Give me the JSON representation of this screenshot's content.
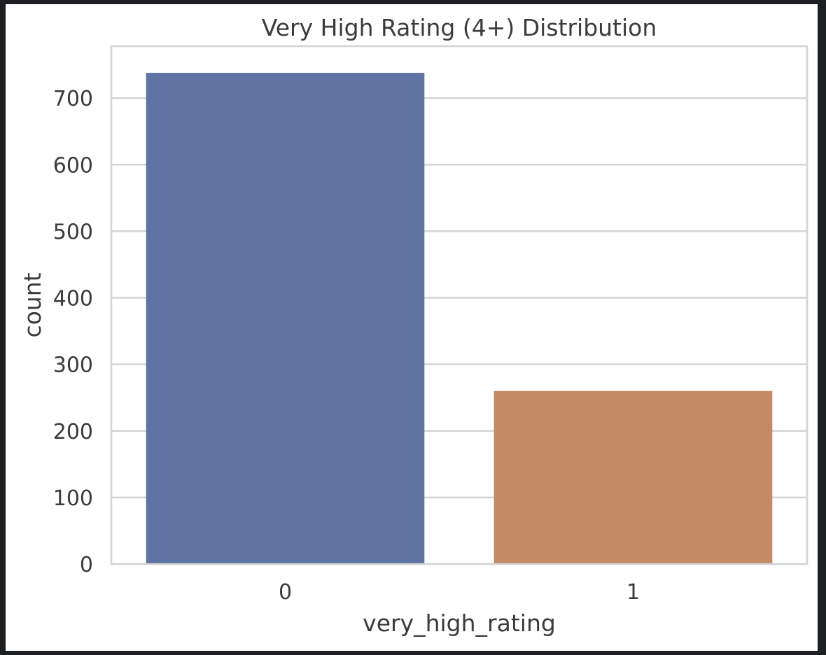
{
  "chart_data": {
    "type": "bar",
    "title": "Very High Rating (4+) Distribution",
    "xlabel": "very_high_rating",
    "ylabel": "count",
    "categories": [
      "0",
      "1"
    ],
    "values": [
      738,
      260
    ],
    "ylim": [
      0,
      778
    ],
    "yticks": [
      0,
      100,
      200,
      300,
      400,
      500,
      600,
      700
    ],
    "grid": true,
    "colors": [
      "#5f73a2",
      "#c38a65"
    ],
    "legend": "none"
  }
}
